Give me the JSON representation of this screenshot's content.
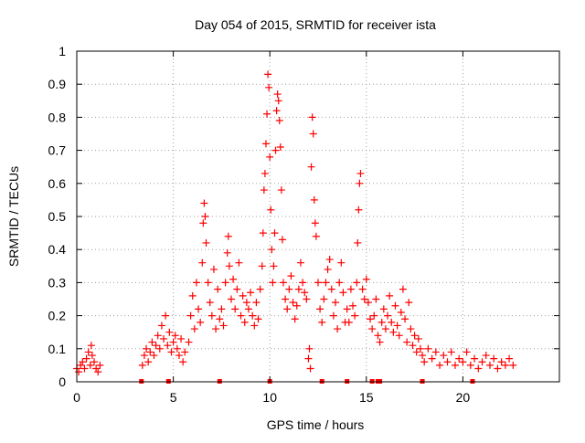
{
  "chart_data": {
    "type": "scatter",
    "title": "Day 054 of 2015, SRMTID for receiver ista",
    "xlabel": "GPS time / hours",
    "ylabel": "SRMTID / TECUs",
    "xlim": [
      0,
      25
    ],
    "ylim": [
      0,
      1
    ],
    "xticks": [
      0,
      5,
      10,
      15,
      20
    ],
    "yticks": [
      0,
      0.1,
      0.2,
      0.3,
      0.4,
      0.5,
      0.6,
      0.7,
      0.8,
      0.9,
      1
    ],
    "xtick_labels": [
      "0",
      "5",
      "10",
      "15",
      "20"
    ],
    "ytick_labels": [
      "0",
      "0.1",
      "0.2",
      "0.3",
      "0.4",
      "0.5",
      "0.6",
      "0.7",
      "0.8",
      "0.9",
      "1"
    ],
    "grid": true,
    "marker": "+",
    "colors": {
      "series": "#ff0000",
      "axis": "#000000",
      "grid": "#a0a0a0"
    },
    "series": [
      {
        "name": "SRMTID",
        "points": [
          [
            0.0,
            0.04
          ],
          [
            0.1,
            0.03
          ],
          [
            0.2,
            0.05
          ],
          [
            0.3,
            0.06
          ],
          [
            0.4,
            0.04
          ],
          [
            0.5,
            0.07
          ],
          [
            0.6,
            0.09
          ],
          [
            0.7,
            0.05
          ],
          [
            0.75,
            0.11
          ],
          [
            0.8,
            0.08
          ],
          [
            0.9,
            0.06
          ],
          [
            1.0,
            0.04
          ],
          [
            1.1,
            0.03
          ],
          [
            1.2,
            0.05
          ],
          [
            3.4,
            0.05
          ],
          [
            3.5,
            0.08
          ],
          [
            3.6,
            0.1
          ],
          [
            3.7,
            0.06
          ],
          [
            3.8,
            0.09
          ],
          [
            3.9,
            0.12
          ],
          [
            4.0,
            0.08
          ],
          [
            4.1,
            0.11
          ],
          [
            4.2,
            0.14
          ],
          [
            4.3,
            0.1
          ],
          [
            4.4,
            0.17
          ],
          [
            4.5,
            0.13
          ],
          [
            4.6,
            0.2
          ],
          [
            4.7,
            0.11
          ],
          [
            4.8,
            0.15
          ],
          [
            4.9,
            0.09
          ],
          [
            5.0,
            0.12
          ],
          [
            5.1,
            0.14
          ],
          [
            5.2,
            0.1
          ],
          [
            5.3,
            0.08
          ],
          [
            5.4,
            0.13
          ],
          [
            5.5,
            0.06
          ],
          [
            5.6,
            0.09
          ],
          [
            5.8,
            0.12
          ],
          [
            5.9,
            0.2
          ],
          [
            6.0,
            0.26
          ],
          [
            6.1,
            0.16
          ],
          [
            6.2,
            0.3
          ],
          [
            6.3,
            0.22
          ],
          [
            6.4,
            0.18
          ],
          [
            6.5,
            0.36
          ],
          [
            6.55,
            0.48
          ],
          [
            6.6,
            0.54
          ],
          [
            6.65,
            0.5
          ],
          [
            6.7,
            0.42
          ],
          [
            6.8,
            0.3
          ],
          [
            6.9,
            0.24
          ],
          [
            7.0,
            0.2
          ],
          [
            7.1,
            0.34
          ],
          [
            7.2,
            0.16
          ],
          [
            7.3,
            0.28
          ],
          [
            7.4,
            0.19
          ],
          [
            7.5,
            0.22
          ],
          [
            7.6,
            0.17
          ],
          [
            7.7,
            0.3
          ],
          [
            7.8,
            0.39
          ],
          [
            7.85,
            0.44
          ],
          [
            7.9,
            0.35
          ],
          [
            8.0,
            0.25
          ],
          [
            8.1,
            0.31
          ],
          [
            8.2,
            0.22
          ],
          [
            8.3,
            0.28
          ],
          [
            8.4,
            0.36
          ],
          [
            8.5,
            0.2
          ],
          [
            8.6,
            0.26
          ],
          [
            8.7,
            0.18
          ],
          [
            8.8,
            0.24
          ],
          [
            8.9,
            0.22
          ],
          [
            9.0,
            0.27
          ],
          [
            9.1,
            0.2
          ],
          [
            9.2,
            0.17
          ],
          [
            9.3,
            0.24
          ],
          [
            9.4,
            0.19
          ],
          [
            9.5,
            0.28
          ],
          [
            9.6,
            0.35
          ],
          [
            9.65,
            0.45
          ],
          [
            9.7,
            0.58
          ],
          [
            9.75,
            0.63
          ],
          [
            9.8,
            0.72
          ],
          [
            9.85,
            0.81
          ],
          [
            9.9,
            0.93
          ],
          [
            9.95,
            0.89
          ],
          [
            10.0,
            0.68
          ],
          [
            10.05,
            0.52
          ],
          [
            10.1,
            0.4
          ],
          [
            10.15,
            0.3
          ],
          [
            10.2,
            0.35
          ],
          [
            10.25,
            0.45
          ],
          [
            10.3,
            0.7
          ],
          [
            10.35,
            0.82
          ],
          [
            10.4,
            0.87
          ],
          [
            10.45,
            0.85
          ],
          [
            10.5,
            0.79
          ],
          [
            10.55,
            0.71
          ],
          [
            10.6,
            0.58
          ],
          [
            10.65,
            0.43
          ],
          [
            10.7,
            0.3
          ],
          [
            10.8,
            0.25
          ],
          [
            10.9,
            0.22
          ],
          [
            11.0,
            0.28
          ],
          [
            11.1,
            0.32
          ],
          [
            11.2,
            0.24
          ],
          [
            11.3,
            0.19
          ],
          [
            11.4,
            0.23
          ],
          [
            11.5,
            0.28
          ],
          [
            11.6,
            0.36
          ],
          [
            11.7,
            0.3
          ],
          [
            11.8,
            0.27
          ],
          [
            11.9,
            0.25
          ],
          [
            12.0,
            0.07
          ],
          [
            12.05,
            0.1
          ],
          [
            12.1,
            0.04
          ],
          [
            12.15,
            0.65
          ],
          [
            12.2,
            0.8
          ],
          [
            12.25,
            0.75
          ],
          [
            12.3,
            0.55
          ],
          [
            12.35,
            0.48
          ],
          [
            12.4,
            0.44
          ],
          [
            12.5,
            0.3
          ],
          [
            12.6,
            0.22
          ],
          [
            12.7,
            0.18
          ],
          [
            12.8,
            0.25
          ],
          [
            12.9,
            0.3
          ],
          [
            13.0,
            0.34
          ],
          [
            13.1,
            0.37
          ],
          [
            13.2,
            0.28
          ],
          [
            13.3,
            0.2
          ],
          [
            13.4,
            0.24
          ],
          [
            13.5,
            0.16
          ],
          [
            13.6,
            0.3
          ],
          [
            13.7,
            0.36
          ],
          [
            13.8,
            0.27
          ],
          [
            13.9,
            0.18
          ],
          [
            14.0,
            0.22
          ],
          [
            14.1,
            0.18
          ],
          [
            14.2,
            0.28
          ],
          [
            14.3,
            0.23
          ],
          [
            14.4,
            0.2
          ],
          [
            14.5,
            0.3
          ],
          [
            14.55,
            0.42
          ],
          [
            14.6,
            0.52
          ],
          [
            14.65,
            0.6
          ],
          [
            14.7,
            0.63
          ],
          [
            14.8,
            0.28
          ],
          [
            14.9,
            0.25
          ],
          [
            15.0,
            0.31
          ],
          [
            15.1,
            0.24
          ],
          [
            15.2,
            0.19
          ],
          [
            15.3,
            0.16
          ],
          [
            15.4,
            0.2
          ],
          [
            15.5,
            0.25
          ],
          [
            15.6,
            0.14
          ],
          [
            15.7,
            0.12
          ],
          [
            15.8,
            0.18
          ],
          [
            15.9,
            0.22
          ],
          [
            16.0,
            0.16
          ],
          [
            16.1,
            0.2
          ],
          [
            16.2,
            0.26
          ],
          [
            16.3,
            0.18
          ],
          [
            16.4,
            0.15
          ],
          [
            16.5,
            0.23
          ],
          [
            16.6,
            0.17
          ],
          [
            16.7,
            0.14
          ],
          [
            16.8,
            0.21
          ],
          [
            16.9,
            0.28
          ],
          [
            17.0,
            0.19
          ],
          [
            17.1,
            0.12
          ],
          [
            17.2,
            0.24
          ],
          [
            17.3,
            0.16
          ],
          [
            17.4,
            0.11
          ],
          [
            17.5,
            0.14
          ],
          [
            17.6,
            0.09
          ],
          [
            17.7,
            0.13
          ],
          [
            17.8,
            0.1
          ],
          [
            17.9,
            0.08
          ],
          [
            18.0,
            0.06
          ],
          [
            18.2,
            0.1
          ],
          [
            18.4,
            0.07
          ],
          [
            18.6,
            0.09
          ],
          [
            18.8,
            0.05
          ],
          [
            19.0,
            0.08
          ],
          [
            19.2,
            0.06
          ],
          [
            19.4,
            0.09
          ],
          [
            19.6,
            0.05
          ],
          [
            19.8,
            0.07
          ],
          [
            20.0,
            0.06
          ],
          [
            20.2,
            0.09
          ],
          [
            20.4,
            0.05
          ],
          [
            20.6,
            0.07
          ],
          [
            20.8,
            0.04
          ],
          [
            21.0,
            0.06
          ],
          [
            21.2,
            0.08
          ],
          [
            21.4,
            0.05
          ],
          [
            21.6,
            0.07
          ],
          [
            21.8,
            0.04
          ],
          [
            22.0,
            0.06
          ],
          [
            22.2,
            0.05
          ],
          [
            22.4,
            0.07
          ],
          [
            22.6,
            0.05
          ]
        ]
      }
    ],
    "gap_markers_x": [
      3.35,
      4.75,
      7.4,
      10.0,
      12.7,
      14.0,
      15.3,
      15.6,
      15.7,
      17.9,
      20.5
    ]
  }
}
